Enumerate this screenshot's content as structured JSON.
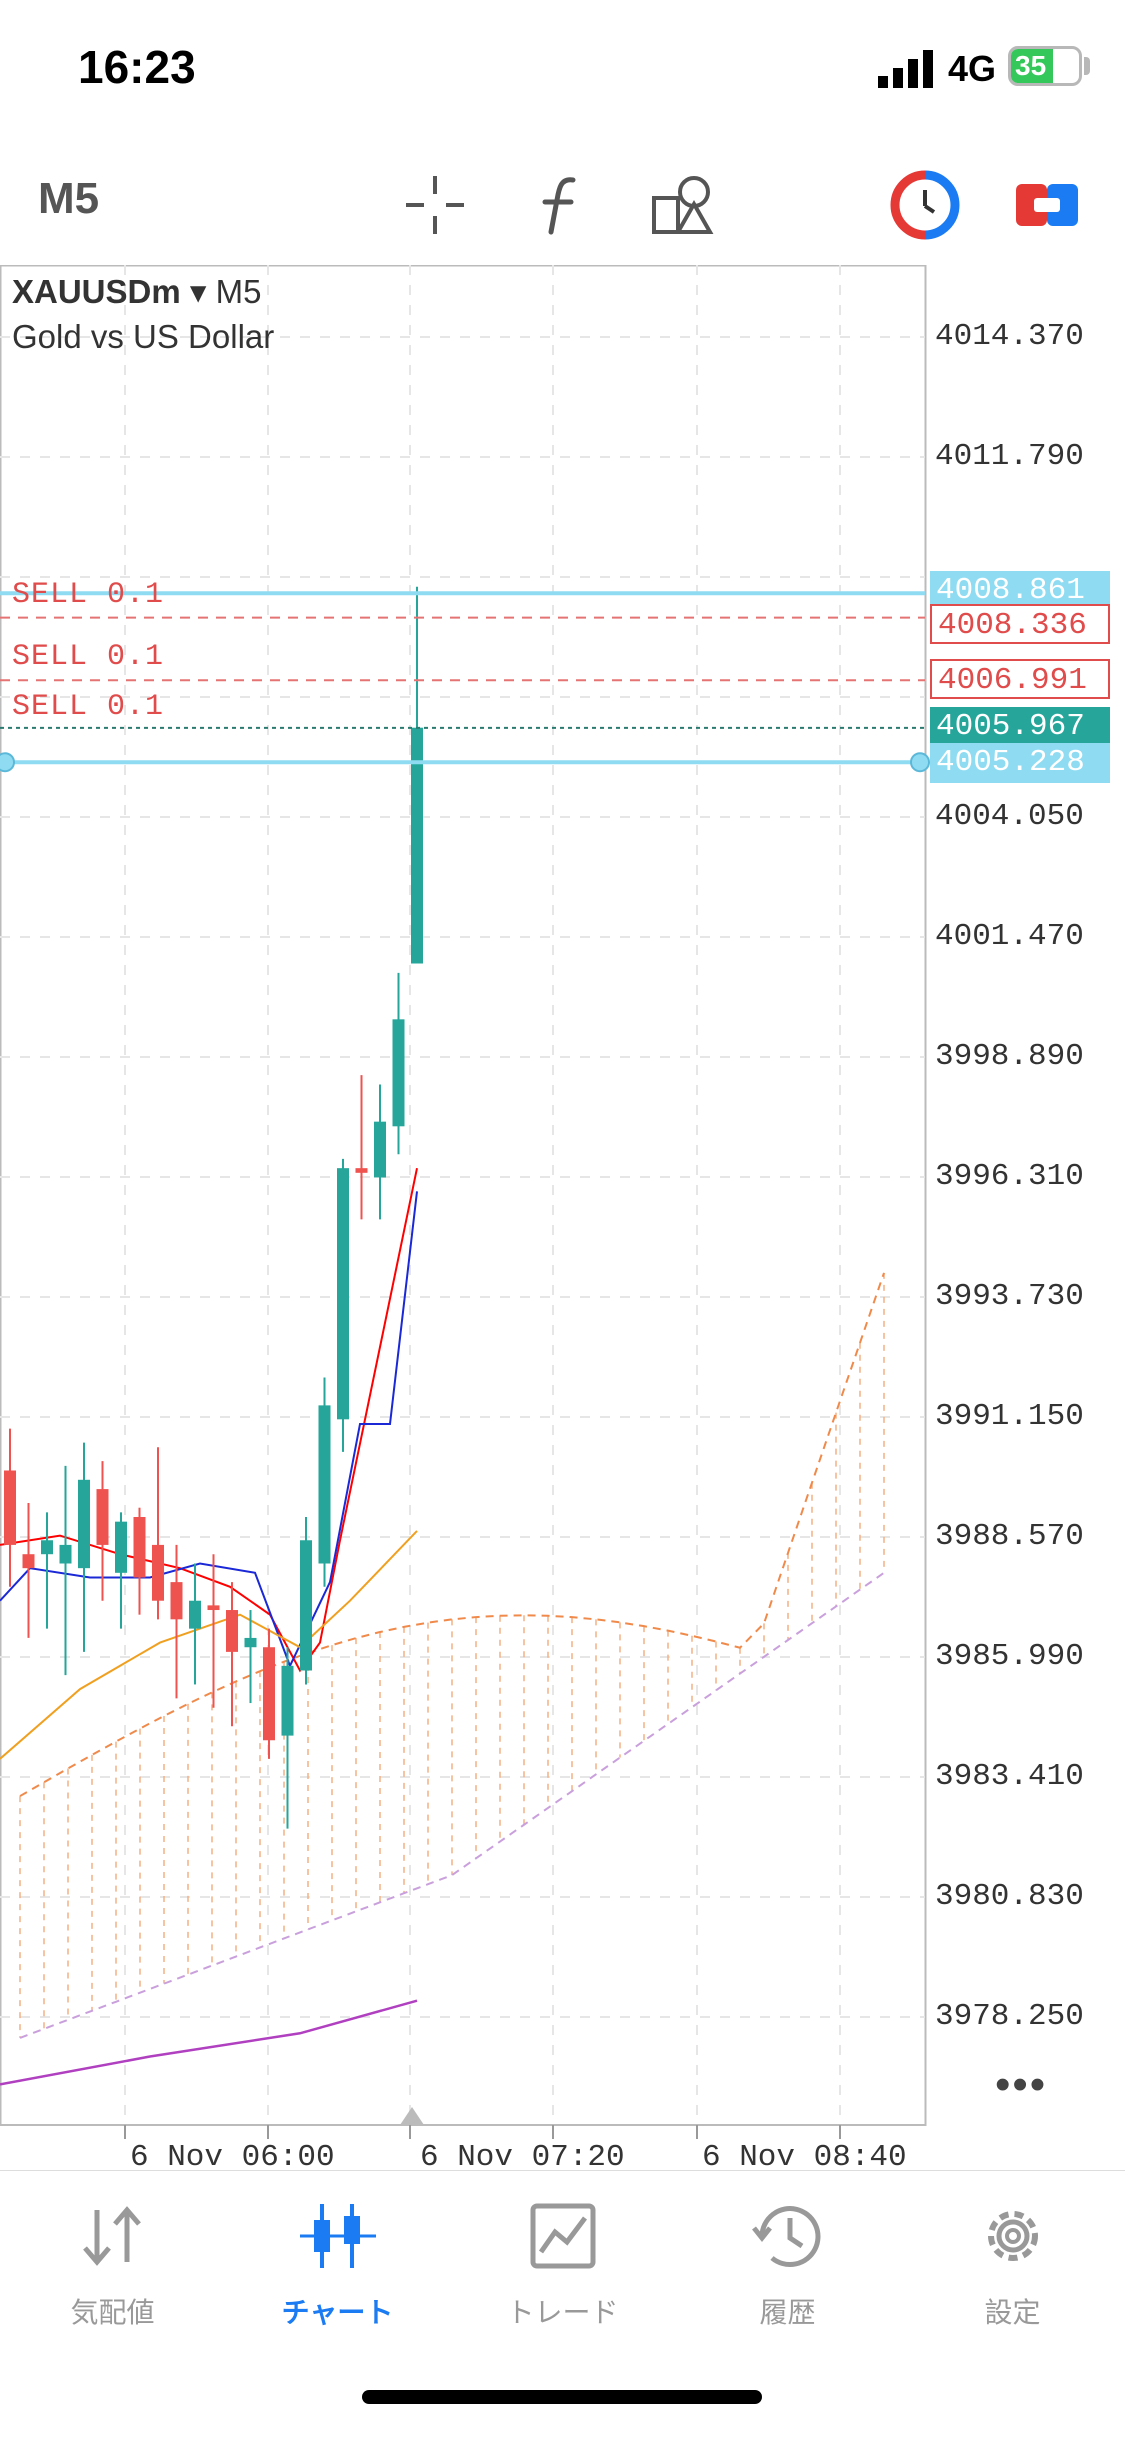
{
  "status_bar": {
    "time": "16:23",
    "network": "4G",
    "battery": "35"
  },
  "toolbar": {
    "timeframe": "M5",
    "icons": [
      "crosshair-icon",
      "indicators-icon",
      "objects-icon",
      "one-click-trading-icon",
      "trade-panel-icon"
    ]
  },
  "chart": {
    "symbol": "XAUUSDm",
    "timeframe": "M5",
    "description": "Gold vs US Dollar",
    "price_ticks": [
      "4014.370",
      "4011.790",
      "4004.050",
      "4001.470",
      "3998.890",
      "3996.310",
      "3993.730",
      "3991.150",
      "3988.570",
      "3985.990",
      "3983.410",
      "3980.830",
      "3978.250"
    ],
    "time_labels": [
      "6 Nov 06:00",
      "6 Nov 07:20",
      "6 Nov 08:40"
    ],
    "orders": [
      {
        "label": "SELL 0.1",
        "price": "4008.336"
      },
      {
        "label": "SELL 0.1",
        "price": "4006.991"
      },
      {
        "label": "SELL 0.1",
        "price": "4005.967"
      }
    ],
    "current_price": "4005.967",
    "ask_line": "4008.861",
    "bid_line": "4005.228",
    "more": "•••"
  },
  "chart_data": {
    "type": "candlestick",
    "symbol": "XAUUSDm",
    "timeframe": "M5",
    "ylim": [
      3976.5,
      4016.0
    ],
    "candles": [
      {
        "o": 3990.0,
        "h": 3990.9,
        "l": 3987.5,
        "c": 3988.4
      },
      {
        "o": 3988.2,
        "h": 3989.3,
        "l": 3986.4,
        "c": 3987.9
      },
      {
        "o": 3988.2,
        "h": 3989.1,
        "l": 3986.6,
        "c": 3988.5
      },
      {
        "o": 3988.0,
        "h": 3990.1,
        "l": 3985.6,
        "c": 3988.4
      },
      {
        "o": 3987.9,
        "h": 3990.6,
        "l": 3986.1,
        "c": 3989.8
      },
      {
        "o": 3989.6,
        "h": 3990.2,
        "l": 3987.2,
        "c": 3988.4
      },
      {
        "o": 3987.8,
        "h": 3989.1,
        "l": 3986.6,
        "c": 3988.9
      },
      {
        "o": 3989.0,
        "h": 3989.2,
        "l": 3986.9,
        "c": 3987.7
      },
      {
        "o": 3988.4,
        "h": 3990.5,
        "l": 3986.8,
        "c": 3987.2
      },
      {
        "o": 3987.6,
        "h": 3988.4,
        "l": 3985.1,
        "c": 3986.8
      },
      {
        "o": 3986.6,
        "h": 3988.0,
        "l": 3985.4,
        "c": 3987.2
      },
      {
        "o": 3987.1,
        "h": 3988.2,
        "l": 3984.9,
        "c": 3987.0
      },
      {
        "o": 3987.0,
        "h": 3987.6,
        "l": 3984.5,
        "c": 3986.1
      },
      {
        "o": 3986.2,
        "h": 3987.0,
        "l": 3985.0,
        "c": 3986.4
      },
      {
        "o": 3986.2,
        "h": 3986.6,
        "l": 3983.8,
        "c": 3984.2
      },
      {
        "o": 3984.3,
        "h": 3986.2,
        "l": 3982.3,
        "c": 3985.8
      },
      {
        "o": 3985.7,
        "h": 3989.0,
        "l": 3985.4,
        "c": 3988.5
      },
      {
        "o": 3988.0,
        "h": 3992.0,
        "l": 3987.5,
        "c": 3991.4
      },
      {
        "o": 3991.1,
        "h": 3996.7,
        "l": 3990.4,
        "c": 3996.5
      },
      {
        "o": 3996.5,
        "h": 3998.5,
        "l": 3995.4,
        "c": 3996.4
      },
      {
        "o": 3996.3,
        "h": 3998.3,
        "l": 3995.4,
        "c": 3997.5
      },
      {
        "o": 3997.4,
        "h": 4000.7,
        "l": 3996.8,
        "c": 3999.7
      },
      {
        "o": 4000.9,
        "h": 4009.0,
        "l": 4000.9,
        "c": 4005.97
      }
    ],
    "indicators": {
      "ichimoku_cloud": "orange",
      "moving_averages": [
        "red",
        "blue",
        "orange",
        "purple"
      ]
    },
    "x_labels": [
      "6 Nov 06:00",
      "6 Nov 07:20",
      "6 Nov 08:40"
    ],
    "y_ticks": [
      4014.37,
      4011.79,
      4009.21,
      4006.63,
      4004.05,
      4001.47,
      3998.89,
      3996.31,
      3993.73,
      3991.15,
      3988.57,
      3985.99,
      3983.41,
      3980.83,
      3978.25
    ],
    "colors": {
      "bull": "#26a69a",
      "bear": "#ef5350",
      "order_line": "#e57373",
      "bid_ask": "#8fdcf2"
    }
  },
  "tabs": [
    {
      "label": "気配値",
      "icon": "quotes-icon",
      "active": false
    },
    {
      "label": "チャート",
      "icon": "chart-icon",
      "active": true
    },
    {
      "label": "トレード",
      "icon": "trade-icon",
      "active": false
    },
    {
      "label": "履歴",
      "icon": "history-icon",
      "active": false
    },
    {
      "label": "設定",
      "icon": "settings-icon",
      "active": false
    }
  ]
}
